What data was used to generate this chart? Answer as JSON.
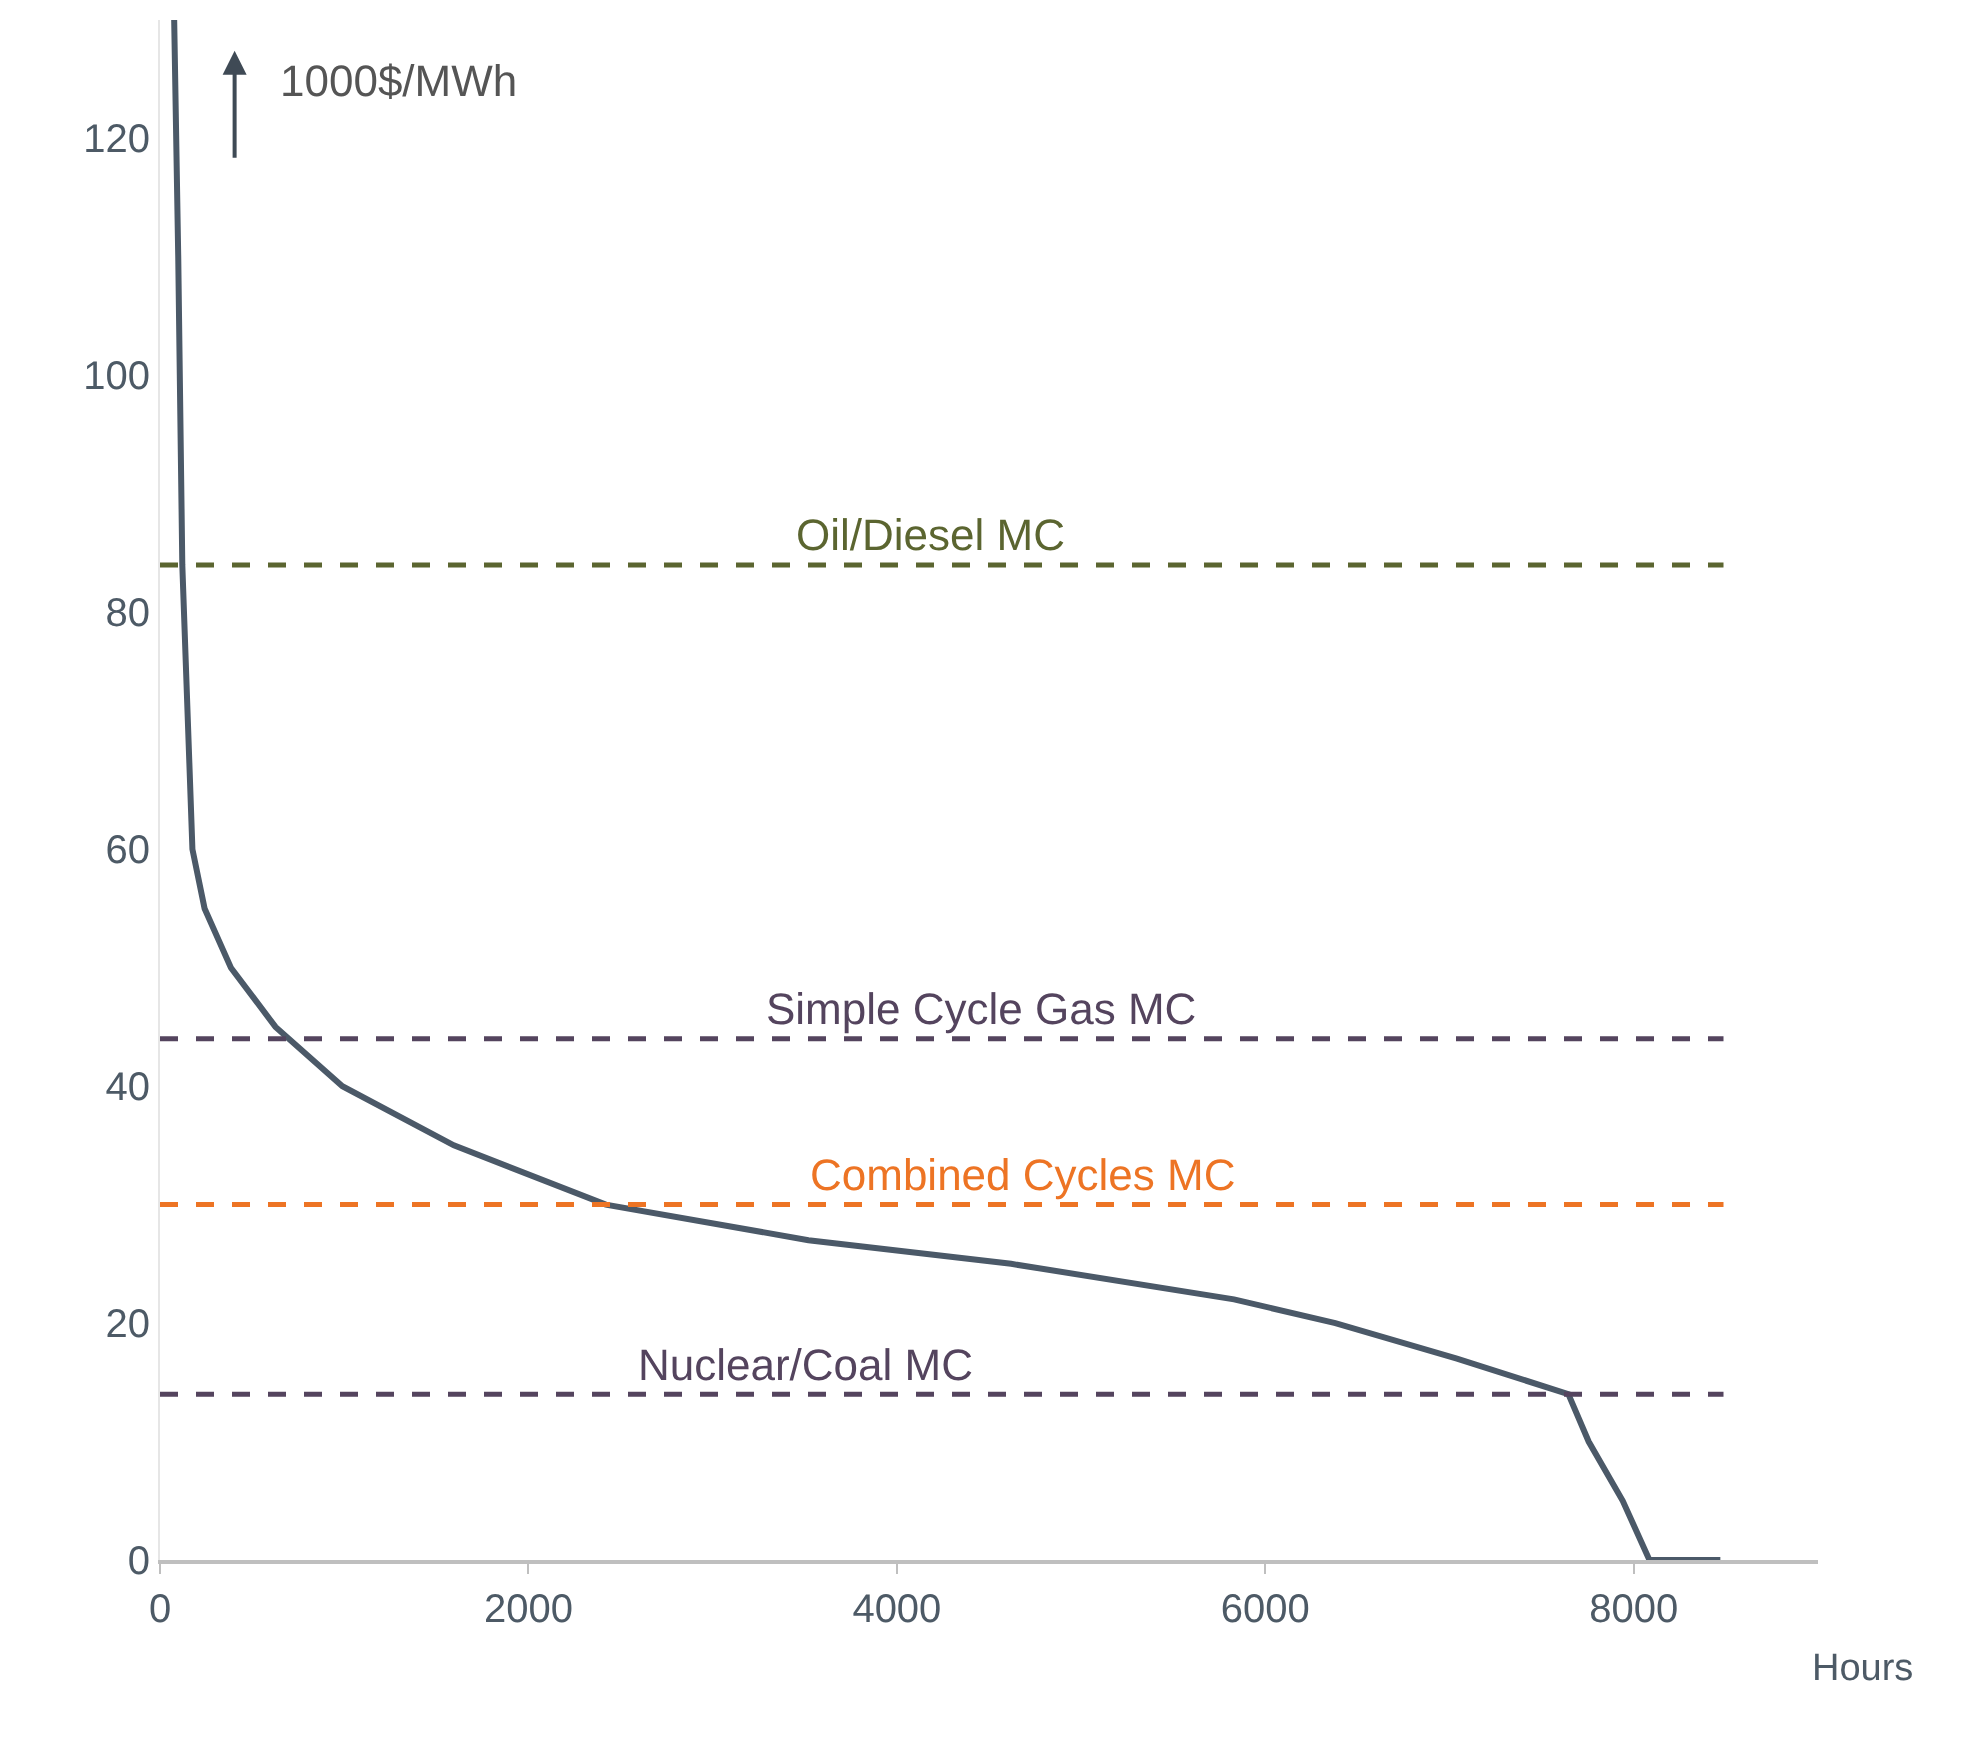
{
  "chart_data": {
    "type": "line",
    "xlabel": "Hours",
    "x": [
      77,
      99,
      121,
      176,
      242,
      385,
      627,
      990,
      1595,
      2420,
      3520,
      4620,
      5830,
      6380,
      7040,
      7645,
      7755,
      7940,
      8085,
      8470
    ],
    "series": [
      {
        "color": "#4b5968",
        "values": [
          130,
          110,
          84,
          60,
          55,
          50,
          45,
          40,
          35,
          30,
          27,
          25,
          22,
          20,
          17,
          14,
          10,
          5,
          0,
          0
        ]
      }
    ],
    "xlim": [
      0,
      9000
    ],
    "xticks": [
      0,
      2000,
      4000,
      6000,
      8000
    ],
    "ylim": [
      0,
      130
    ],
    "yticks": [
      0,
      20,
      40,
      60,
      80,
      100,
      120
    ],
    "marker": "none",
    "line_style": "solid",
    "ref_lines": [
      {
        "axis": "y",
        "value": 84,
        "label": "Oil/Diesel MC",
        "color": "#5b6530",
        "line_style": "dashed"
      },
      {
        "axis": "y",
        "value": 44,
        "label": "Simple Cycle Gas MC",
        "color": "#54445e",
        "line_style": "dashed"
      },
      {
        "axis": "y",
        "value": 30,
        "label": "Combined Cycles MC",
        "color": "#ed7424",
        "line_style": "dashed"
      },
      {
        "axis": "y",
        "value": 14,
        "label": "Nuclear/Coal MC",
        "color": "#54445e",
        "line_style": "dashed"
      }
    ],
    "annotations": [
      "1000$/MWh"
    ]
  }
}
